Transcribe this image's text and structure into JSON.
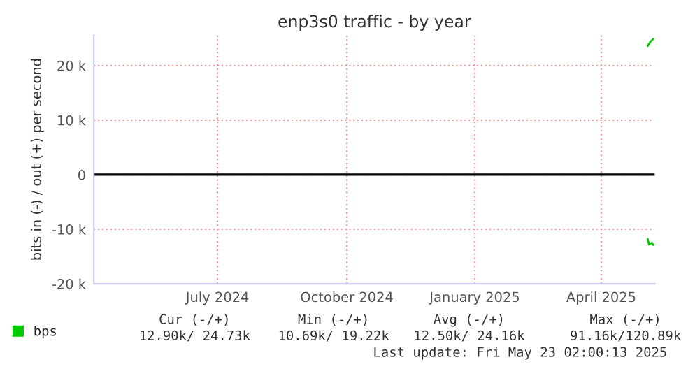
{
  "chart_data": {
    "type": "line",
    "title": "enp3s0 traffic - by year",
    "ylabel": "bits in (-) / out (+) per second",
    "xlim": [
      "2024-04-19",
      "2025-05-23"
    ],
    "xticks": [
      {
        "value": "2024-07-16",
        "label": "July 2024"
      },
      {
        "value": "2024-10-16",
        "label": "October 2024"
      },
      {
        "value": "2025-01-15",
        "label": "January 2025"
      },
      {
        "value": "2025-04-15",
        "label": "April 2025"
      }
    ],
    "ylim": [
      -20000,
      25600
    ],
    "yticks": [
      {
        "value": -20000,
        "label": "-20 k"
      },
      {
        "value": -10000,
        "label": "-10 k"
      },
      0,
      {
        "value": 10000,
        "label": "10 k"
      },
      {
        "value": 20000,
        "label": "20 k"
      }
    ],
    "grid": true,
    "legend": "bottom left",
    "ref_lines": [
      {
        "axis": "y",
        "value": 0,
        "color": "#000000"
      }
    ],
    "series": [
      {
        "name": "bps",
        "color": "#00cc00",
        "x": [
          "2025-05-18",
          "2025-05-20",
          "2025-05-22"
        ],
        "values": [
          23600,
          24400,
          24900
        ]
      },
      {
        "color": "#00c800",
        "x": [
          "2025-05-18",
          "2025-05-19",
          "2025-05-21",
          "2025-05-22"
        ],
        "values": [
          -11800,
          -12800,
          -12500,
          -12900
        ]
      }
    ],
    "annotations": [
      "Cur (-/+)",
      "Min (-/+)",
      "Avg (-/+)",
      "Max (-/+)",
      "12.90k/ 24.73k",
      "10.69k/ 19.22k",
      "12.50k/ 24.16k",
      "91.16k/120.89k",
      "Last update: Fri May 23 02:00:13 2025"
    ]
  }
}
